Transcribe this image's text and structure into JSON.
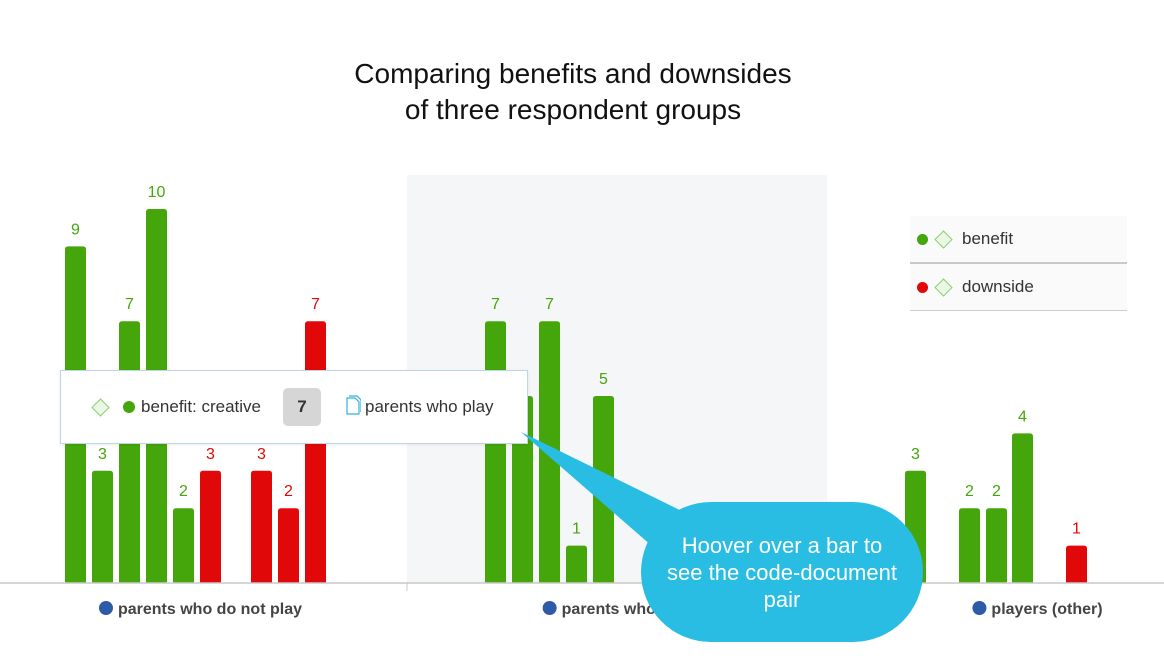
{
  "chart_data": {
    "type": "bar",
    "title_line1": "Comparing benefits and downsides",
    "title_line2": "of three respondent groups",
    "categories": [
      "parents who do not play",
      "parents who play",
      "players (other)"
    ],
    "ylim": [
      0,
      11
    ],
    "series": [
      {
        "name": "benefit",
        "color": "#44a60b"
      },
      {
        "name": "downside",
        "color": "#e00808"
      }
    ],
    "groups": [
      {
        "category": "parents who do not play",
        "bars": [
          {
            "series": "benefit",
            "value": 9
          },
          {
            "series": "benefit",
            "value": 3
          },
          {
            "series": "benefit",
            "value": 7
          },
          {
            "series": "benefit",
            "value": 10
          },
          {
            "series": "benefit",
            "value": 2
          },
          {
            "series": "downside",
            "value": 3
          },
          {
            "series": "downside",
            "value": 3
          },
          {
            "series": "downside",
            "value": 2
          },
          {
            "series": "downside",
            "value": 7
          }
        ]
      },
      {
        "category": "parents who play",
        "bars": [
          {
            "series": "benefit",
            "value": 7
          },
          {
            "series": "benefit",
            "value": 5
          },
          {
            "series": "benefit",
            "value": 7
          },
          {
            "series": "benefit",
            "value": 1
          },
          {
            "series": "benefit",
            "value": 5
          }
        ]
      },
      {
        "category": "players (other)",
        "bars": [
          {
            "series": "benefit",
            "value": 3
          },
          {
            "series": "benefit",
            "value": 2
          },
          {
            "series": "benefit",
            "value": 2
          },
          {
            "series": "benefit",
            "value": 4
          },
          {
            "series": "downside",
            "value": 1
          }
        ]
      }
    ],
    "grid": false,
    "legend_position": "right",
    "highlighted_category": "parents who play",
    "category_marker_color": "#2d5ba8"
  },
  "legend": [
    {
      "label": "benefit",
      "color": "#44a60b"
    },
    {
      "label": "downside",
      "color": "#e00808"
    }
  ],
  "tooltip": {
    "code": "benefit: creative",
    "count": "7",
    "document": "parents who play",
    "dot_color": "#44a60b",
    "icon": "document-icon"
  },
  "callout": {
    "text": "Hoover over a bar to see the code-document pair",
    "color": "#29bde4"
  }
}
